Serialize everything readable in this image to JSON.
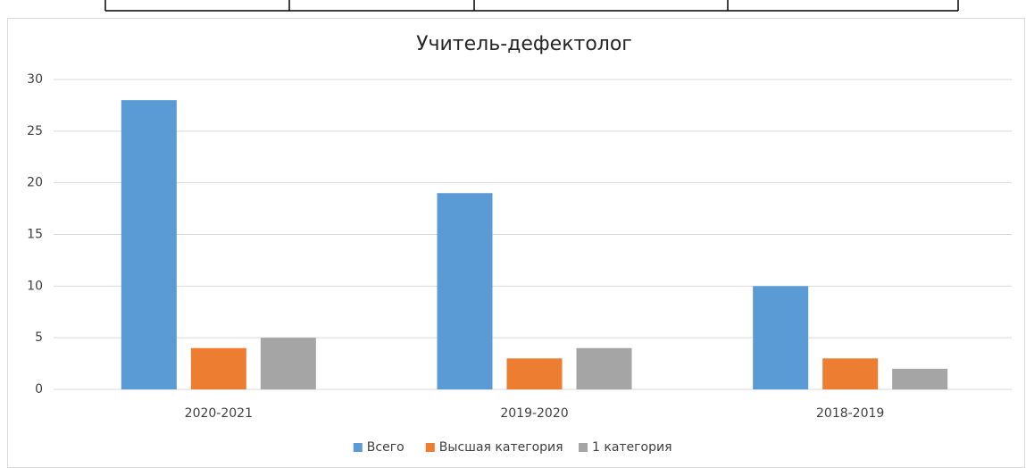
{
  "chart_data": {
    "type": "bar",
    "title": "Учитель-дефектолог",
    "categories": [
      "2020-2021",
      "2019-2020",
      "2018-2019"
    ],
    "series": [
      {
        "name": "Всего",
        "color": "#5b9bd5",
        "values": [
          28,
          19,
          10
        ]
      },
      {
        "name": "Высшая категория",
        "color": "#ed7d31",
        "values": [
          4,
          3,
          3
        ]
      },
      {
        "name": "1 категория",
        "color": "#a5a5a5",
        "values": [
          5,
          4,
          2
        ]
      }
    ],
    "ylim": [
      0,
      30
    ],
    "yticks": [
      0,
      5,
      10,
      15,
      20,
      25,
      30
    ],
    "grid": true,
    "legend": "bottom"
  }
}
